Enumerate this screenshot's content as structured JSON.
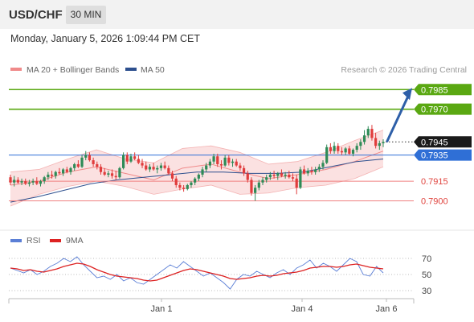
{
  "header": {
    "symbol": "USD/CHF",
    "timeframe": "30 MIN"
  },
  "timestamp": "Monday, January 5, 2026 1:09:44 PM CET",
  "legend": {
    "bollinger": "MA 20 + Bollinger Bands",
    "ma50": "MA 50",
    "rsi": "RSI",
    "ma9": "9MA"
  },
  "copyright": "Research © 2026 Trading Central",
  "colors": {
    "bull": "#2e8b57",
    "bear": "#e03c3c",
    "resistance": "#5aa812",
    "support": "#f08080",
    "pivot": "#2f6fd6",
    "ma50": "#2d4f8e",
    "ma20": "#f08a8a",
    "band_fill": "#fbe1e1",
    "rsi": "#5b7fd6",
    "rsi_ma": "#dd2222",
    "arrow": "#2e5fa8"
  },
  "chart_data": [
    {
      "type": "candlestick",
      "price_range": [
        0.788,
        0.7995
      ],
      "x_ticks": [
        "Jan 1",
        "Jan 4",
        "Jan 6"
      ],
      "levels": [
        {
          "label": "0.7985",
          "value": 0.7985,
          "kind": "resistance"
        },
        {
          "label": "0.7970",
          "value": 0.797,
          "kind": "resistance"
        },
        {
          "label": "0.7945",
          "value": 0.7945,
          "kind": "last-price"
        },
        {
          "label": "0.7935",
          "value": 0.7935,
          "kind": "pivot"
        },
        {
          "label": "0.7915",
          "value": 0.7915,
          "kind": "support"
        },
        {
          "label": "0.7900",
          "value": 0.79,
          "kind": "support"
        }
      ],
      "candles": [
        [
          0.7918,
          0.792,
          0.7912,
          0.7914
        ],
        [
          0.7914,
          0.7919,
          0.7911,
          0.7916
        ],
        [
          0.7916,
          0.7918,
          0.7913,
          0.7914
        ],
        [
          0.7914,
          0.7917,
          0.7912,
          0.7915
        ],
        [
          0.7915,
          0.7917,
          0.7912,
          0.7913
        ],
        [
          0.7913,
          0.7916,
          0.7911,
          0.7914
        ],
        [
          0.7914,
          0.7917,
          0.7912,
          0.7915
        ],
        [
          0.7915,
          0.7918,
          0.7912,
          0.7913
        ],
        [
          0.7913,
          0.7916,
          0.7911,
          0.7915
        ],
        [
          0.7915,
          0.7919,
          0.7913,
          0.7918
        ],
        [
          0.7918,
          0.7922,
          0.7916,
          0.792
        ],
        [
          0.792,
          0.7923,
          0.7917,
          0.7919
        ],
        [
          0.7919,
          0.7923,
          0.7917,
          0.7922
        ],
        [
          0.7922,
          0.7925,
          0.792,
          0.7921
        ],
        [
          0.7921,
          0.7925,
          0.7919,
          0.7924
        ],
        [
          0.7924,
          0.7926,
          0.7921,
          0.7922
        ],
        [
          0.7922,
          0.7926,
          0.792,
          0.7925
        ],
        [
          0.7925,
          0.7929,
          0.7923,
          0.7928
        ],
        [
          0.7928,
          0.7931,
          0.7925,
          0.7926
        ],
        [
          0.7926,
          0.7935,
          0.7925,
          0.7933
        ],
        [
          0.7933,
          0.7938,
          0.7931,
          0.7935
        ],
        [
          0.7935,
          0.7937,
          0.793,
          0.7931
        ],
        [
          0.7931,
          0.7933,
          0.7926,
          0.7928
        ],
        [
          0.7928,
          0.793,
          0.7924,
          0.7926
        ],
        [
          0.7926,
          0.7928,
          0.792,
          0.7922
        ],
        [
          0.7922,
          0.7925,
          0.7919,
          0.792
        ],
        [
          0.792,
          0.7923,
          0.7918,
          0.7921
        ],
        [
          0.7921,
          0.7924,
          0.7917,
          0.7919
        ],
        [
          0.7919,
          0.7923,
          0.7916,
          0.7918
        ],
        [
          0.7918,
          0.7926,
          0.7917,
          0.7925
        ],
        [
          0.7925,
          0.7937,
          0.7924,
          0.7935
        ],
        [
          0.7935,
          0.7937,
          0.7928,
          0.793
        ],
        [
          0.793,
          0.7936,
          0.7929,
          0.7934
        ],
        [
          0.7934,
          0.7937,
          0.7931,
          0.7932
        ],
        [
          0.7932,
          0.7935,
          0.7928,
          0.7929
        ],
        [
          0.7929,
          0.7932,
          0.7925,
          0.7927
        ],
        [
          0.7927,
          0.793,
          0.7923,
          0.7924
        ],
        [
          0.7924,
          0.7928,
          0.7922,
          0.7926
        ],
        [
          0.7926,
          0.7929,
          0.7923,
          0.7924
        ],
        [
          0.7924,
          0.7927,
          0.7921,
          0.7925
        ],
        [
          0.7925,
          0.7929,
          0.7923,
          0.7927
        ],
        [
          0.7927,
          0.793,
          0.7924,
          0.7925
        ],
        [
          0.7925,
          0.7927,
          0.792,
          0.7921
        ],
        [
          0.7921,
          0.7923,
          0.7915,
          0.7917
        ],
        [
          0.7917,
          0.7919,
          0.791,
          0.7912
        ],
        [
          0.7912,
          0.7914,
          0.7908,
          0.791
        ],
        [
          0.791,
          0.7912,
          0.7907,
          0.7909
        ],
        [
          0.7909,
          0.7913,
          0.7908,
          0.7912
        ],
        [
          0.7912,
          0.7915,
          0.791,
          0.7914
        ],
        [
          0.7914,
          0.7918,
          0.7912,
          0.7917
        ],
        [
          0.7917,
          0.7921,
          0.7915,
          0.792
        ],
        [
          0.792,
          0.7926,
          0.7918,
          0.7924
        ],
        [
          0.7924,
          0.7929,
          0.7922,
          0.7927
        ],
        [
          0.7927,
          0.7932,
          0.7925,
          0.793
        ],
        [
          0.793,
          0.7936,
          0.7928,
          0.7934
        ],
        [
          0.7934,
          0.7936,
          0.7926,
          0.7928
        ],
        [
          0.7928,
          0.7931,
          0.7924,
          0.7927
        ],
        [
          0.7927,
          0.7935,
          0.7926,
          0.7933
        ],
        [
          0.7933,
          0.7935,
          0.7927,
          0.7929
        ],
        [
          0.7929,
          0.7932,
          0.7926,
          0.793
        ],
        [
          0.793,
          0.7932,
          0.7926,
          0.7927
        ],
        [
          0.7927,
          0.7929,
          0.7923,
          0.7925
        ],
        [
          0.7925,
          0.7927,
          0.7919,
          0.7921
        ],
        [
          0.7921,
          0.7923,
          0.7914,
          0.7916
        ],
        [
          0.7916,
          0.7918,
          0.7904,
          0.7906
        ],
        [
          0.7906,
          0.7912,
          0.79,
          0.791
        ],
        [
          0.791,
          0.7916,
          0.7908,
          0.7914
        ],
        [
          0.7914,
          0.7918,
          0.7912,
          0.7916
        ],
        [
          0.7916,
          0.792,
          0.7914,
          0.7918
        ],
        [
          0.7918,
          0.7922,
          0.7916,
          0.792
        ],
        [
          0.792,
          0.7923,
          0.7917,
          0.7919
        ],
        [
          0.7919,
          0.7922,
          0.7916,
          0.7921
        ],
        [
          0.7921,
          0.7924,
          0.7918,
          0.7919
        ],
        [
          0.7919,
          0.7922,
          0.7917,
          0.792
        ],
        [
          0.792,
          0.7923,
          0.7917,
          0.7918
        ],
        [
          0.7918,
          0.7921,
          0.7915,
          0.7917
        ],
        [
          0.7917,
          0.792,
          0.7905,
          0.791
        ],
        [
          0.791,
          0.7926,
          0.7909,
          0.7924
        ],
        [
          0.7924,
          0.7927,
          0.792,
          0.7921
        ],
        [
          0.7921,
          0.7925,
          0.7919,
          0.7923
        ],
        [
          0.7923,
          0.7926,
          0.792,
          0.7922
        ],
        [
          0.7922,
          0.7926,
          0.792,
          0.7924
        ],
        [
          0.7924,
          0.7928,
          0.7922,
          0.7926
        ],
        [
          0.7926,
          0.7931,
          0.7924,
          0.7929
        ],
        [
          0.7929,
          0.7943,
          0.7928,
          0.7941
        ],
        [
          0.7941,
          0.7944,
          0.7936,
          0.7938
        ],
        [
          0.7938,
          0.7945,
          0.7936,
          0.7942
        ],
        [
          0.7942,
          0.7944,
          0.7936,
          0.7938
        ],
        [
          0.7938,
          0.7941,
          0.7935,
          0.7937
        ],
        [
          0.7937,
          0.7941,
          0.7935,
          0.794
        ],
        [
          0.794,
          0.7942,
          0.7935,
          0.7936
        ],
        [
          0.7936,
          0.794,
          0.7934,
          0.7939
        ],
        [
          0.7939,
          0.7944,
          0.7937,
          0.7942
        ],
        [
          0.7942,
          0.7947,
          0.7939,
          0.7945
        ],
        [
          0.7945,
          0.7954,
          0.7943,
          0.795
        ],
        [
          0.795,
          0.7957,
          0.7948,
          0.7955
        ],
        [
          0.7955,
          0.7958,
          0.7946,
          0.7948
        ],
        [
          0.7948,
          0.7952,
          0.794,
          0.7942
        ],
        [
          0.7942,
          0.7946,
          0.7939,
          0.7944
        ],
        [
          0.7944,
          0.7947,
          0.7941,
          0.7945
        ]
      ],
      "bollinger": {
        "mid": [
          0.7912,
          0.7915,
          0.7922,
          0.7926,
          0.7921,
          0.7916,
          0.7925,
          0.7928,
          0.7922,
          0.7917,
          0.792,
          0.7924,
          0.793,
          0.7938
        ],
        "upper": [
          0.7922,
          0.7924,
          0.7932,
          0.7939,
          0.7932,
          0.7929,
          0.794,
          0.7942,
          0.7937,
          0.7928,
          0.793,
          0.7937,
          0.7946,
          0.7954
        ],
        "lower": [
          0.7896,
          0.7905,
          0.7911,
          0.7915,
          0.7911,
          0.7905,
          0.7909,
          0.7912,
          0.7905,
          0.7906,
          0.791,
          0.7912,
          0.7917,
          0.7926
        ]
      },
      "ma50": [
        0.7899,
        0.7903,
        0.7908,
        0.7913,
        0.7916,
        0.7918,
        0.792,
        0.7922,
        0.7922,
        0.7921,
        0.7921,
        0.7922,
        0.7926,
        0.793,
        0.7932
      ]
    },
    {
      "type": "line",
      "yticks": [
        70,
        50,
        30
      ],
      "ylim": [
        20,
        80
      ],
      "series": [
        {
          "name": "RSI",
          "values": [
            58,
            55,
            52,
            56,
            50,
            54,
            60,
            64,
            70,
            66,
            72,
            62,
            54,
            46,
            48,
            44,
            50,
            42,
            46,
            40,
            38,
            44,
            50,
            56,
            62,
            58,
            66,
            60,
            54,
            48,
            52,
            46,
            40,
            32,
            44,
            50,
            48,
            54,
            50,
            46,
            52,
            56,
            50,
            58,
            62,
            68,
            58,
            64,
            60,
            54,
            62,
            70,
            66,
            50,
            48,
            60,
            52
          ]
        },
        {
          "name": "9MA",
          "values": [
            58,
            57,
            55,
            56,
            54,
            53,
            55,
            57,
            60,
            62,
            64,
            63,
            60,
            56,
            53,
            50,
            48,
            47,
            46,
            45,
            43,
            42,
            43,
            46,
            49,
            52,
            55,
            57,
            56,
            54,
            52,
            50,
            48,
            45,
            44,
            45,
            46,
            48,
            49,
            48,
            49,
            51,
            52,
            53,
            55,
            58,
            59,
            60,
            60,
            59,
            60,
            62,
            63,
            61,
            59,
            58,
            57
          ]
        }
      ]
    }
  ]
}
